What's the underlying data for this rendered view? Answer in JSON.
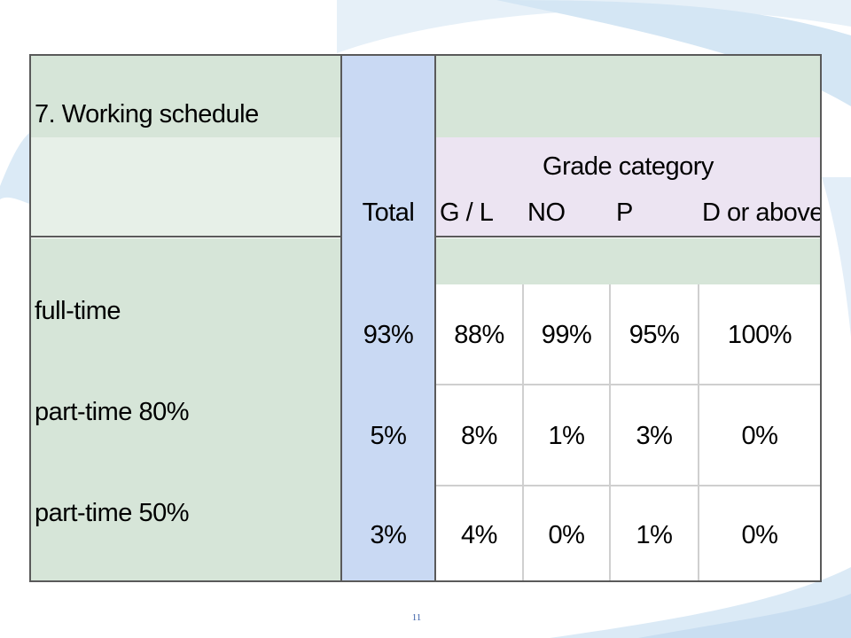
{
  "table": {
    "title": "7. Working schedule",
    "group_header": "Grade category",
    "total_header": "Total",
    "columns": [
      "G / L",
      "NO",
      "P",
      "D or above"
    ],
    "rows": [
      {
        "label": "full-time",
        "total": "93%",
        "values": [
          "88%",
          "99%",
          "95%",
          "100%"
        ]
      },
      {
        "label": "part-time 80%",
        "total": "5%",
        "values": [
          "8%",
          "1%",
          "3%",
          "0%"
        ]
      },
      {
        "label": "part-time 50%",
        "total": "3%",
        "values": [
          "4%",
          "0%",
          "1%",
          "0%"
        ]
      }
    ]
  },
  "chart_data": {
    "type": "table",
    "title": "7. Working schedule",
    "column_group": "Grade category",
    "columns": [
      "Total",
      "G / L",
      "NO",
      "P",
      "D or above"
    ],
    "rows": [
      "full-time",
      "part-time 80%",
      "part-time 50%"
    ],
    "values": [
      [
        93,
        88,
        99,
        95,
        100
      ],
      [
        5,
        8,
        1,
        3,
        0
      ],
      [
        3,
        4,
        0,
        1,
        0
      ]
    ],
    "unit": "%"
  },
  "footer": {
    "page_number": "11"
  },
  "colors": {
    "header_green": "#d6e5d8",
    "light_green": "#e7f0e8",
    "total_blue": "#c9d9f3",
    "grade_lavender": "#ece4f2",
    "page_number": "#3a5fa8",
    "swoosh": "#dbeaf6"
  }
}
